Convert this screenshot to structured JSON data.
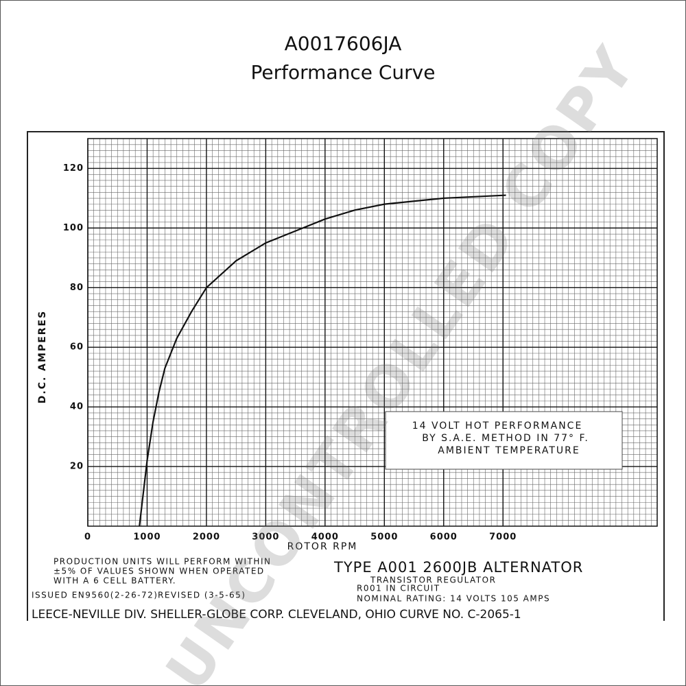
{
  "chart_data": {
    "type": "line",
    "title": "A0017606JA",
    "subtitle": "Performance Curve",
    "x_label": "ROTOR RPM",
    "y_label": "D.C. AMPERES",
    "x": [
      870,
      1000,
      1100,
      1200,
      1300,
      1500,
      1750,
      2000,
      2500,
      3000,
      3500,
      4000,
      4500,
      5000,
      5500,
      6000,
      7050
    ],
    "values": [
      0,
      22,
      35,
      45,
      53,
      63,
      72,
      80,
      89,
      95,
      99,
      103,
      106,
      108,
      109,
      110,
      111
    ],
    "color": "#111111",
    "xlim": [
      0,
      9600
    ],
    "xticks": [
      0,
      1000,
      2000,
      3000,
      4000,
      5000,
      6000,
      7000
    ],
    "ylim": [
      0,
      130
    ],
    "yticks": [
      20,
      40,
      60,
      80,
      100,
      120
    ],
    "grid": true,
    "annotations": [
      "14 VOLT HOT PERFORMANCE",
      "BY S.A.E. METHOD IN 77° F.",
      "AMBIENT TEMPERATURE"
    ],
    "footer": {
      "production": [
        "PRODUCTION UNITS WILL PERFORM WITHIN",
        "±5% OF VALUES SHOWN WHEN OPERATED",
        "WITH A 6 CELL BATTERY."
      ],
      "issued": "ISSUED EN9560(2-26-72)",
      "revised": "REVISED (3-5-65)",
      "type": "TYPE A001 2600JB ALTERNATOR",
      "regulator": [
        "TRANSISTOR REGULATOR",
        "R001 IN CIRCUIT"
      ],
      "rating": "NOMINAL RATING: 14 VOLTS 105 AMPS",
      "company": "LEECE-NEVILLE DIV. SHELLER-GLOBE CORP. CLEVELAND, OHIO CURVE NO. C-2065-1"
    },
    "watermark": "UNCONTROLLED COPY"
  }
}
